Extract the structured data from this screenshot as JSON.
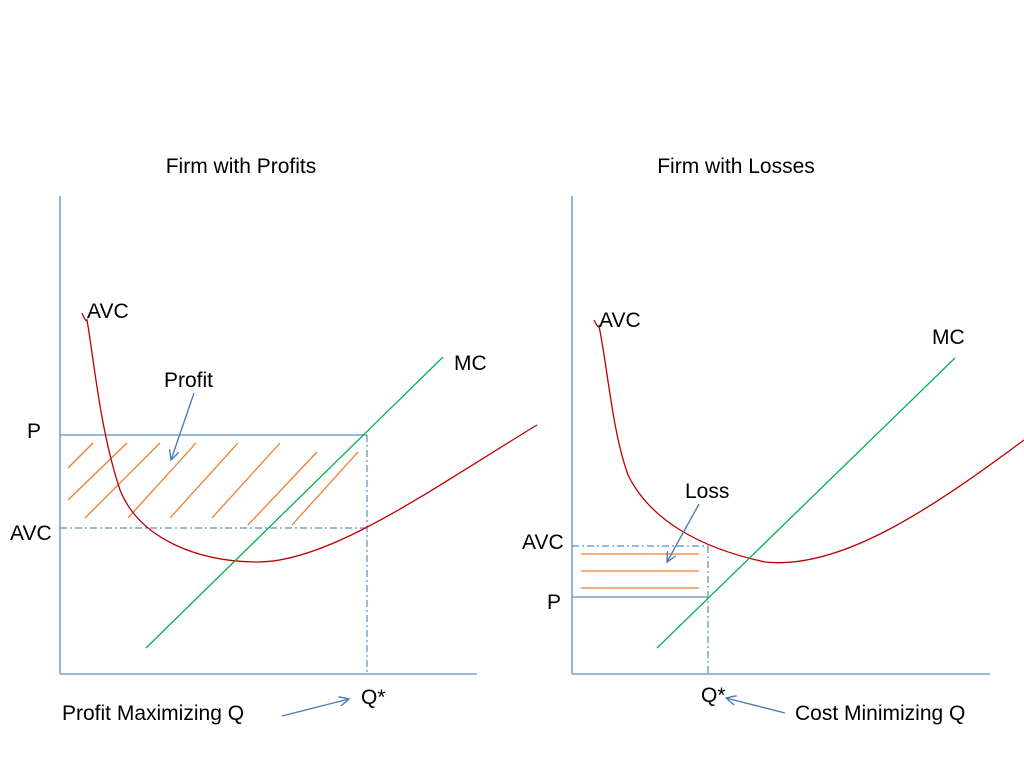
{
  "left_panel": {
    "title": "Firm with Profits",
    "avc_curve_label": "AVC",
    "mc_curve_label": "MC",
    "price_axis_label": "P",
    "avc_axis_label": "AVC",
    "region_label": "Profit",
    "quantity_label": "Q*",
    "quantity_note": "Profit Maximizing Q"
  },
  "right_panel": {
    "title": "Firm with Losses",
    "avc_curve_label": "AVC",
    "mc_curve_label": "MC",
    "price_axis_label": "P",
    "avc_axis_label": "AVC",
    "region_label": "Loss",
    "quantity_label": "Q*",
    "quantity_note": "Cost Minimizing Q"
  },
  "colors": {
    "axes": "#5b8fc7",
    "avc_curve": "#c00000",
    "mc_curve": "#00b050",
    "shaded_region": "#ed7d31",
    "pointer_arrows": "#4a7ebb"
  }
}
